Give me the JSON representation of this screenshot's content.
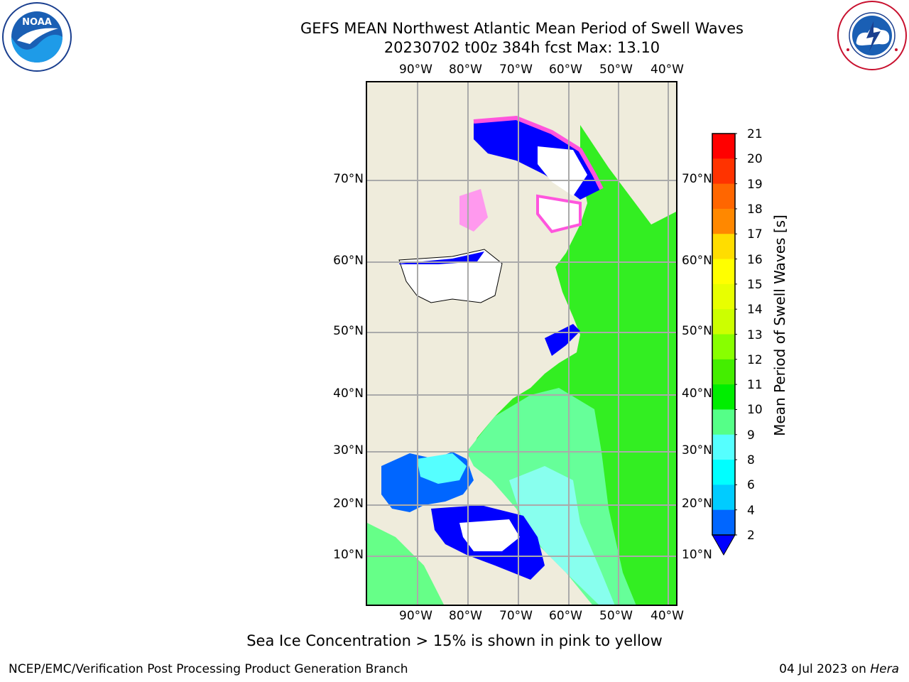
{
  "header": {
    "title_line1": "GEFS MEAN Northwest Atlantic Mean Period of Swell Waves",
    "title_line2": "20230702 t00z 384h fcst   Max: 13.10"
  },
  "logos": {
    "left": "NOAA",
    "left_ring_text": "NATIONAL OCEANIC AND ATMOSPHERIC ADMINISTRATION • U.S. DEPARTMENT OF COMMERCE",
    "right_ring_text": "NATIONAL WEATHER SERVICE"
  },
  "map": {
    "lon_labels": [
      "90°W",
      "80°W",
      "70°W",
      "60°W",
      "50°W",
      "40°W"
    ],
    "lat_labels": [
      "70°N",
      "60°N",
      "50°N",
      "40°N",
      "30°N",
      "20°N",
      "10°N"
    ],
    "colors": {
      "land": "#efecdc",
      "ice": "#ffffff",
      "ice_edge": "#ff55dd"
    }
  },
  "colorbar": {
    "title": "Mean Period of Swell Waves [s]",
    "ticks": [
      "21",
      "20",
      "19",
      "18",
      "17",
      "16",
      "15",
      "14",
      "13",
      "12",
      "11",
      "10",
      "9",
      "8",
      "6",
      "4",
      "2"
    ],
    "colors": [
      "#ff0000",
      "#ff3300",
      "#ff6600",
      "#ff8800",
      "#ffaa00",
      "#ffdd00",
      "#ffff00",
      "#e8ff00",
      "#ccff00",
      "#88ff00",
      "#44ee00",
      "#00ee00",
      "#55ff88",
      "#aaffff",
      "#55ffff",
      "#00ffff",
      "#00ccff",
      "#0066ff",
      "#0000ff"
    ]
  },
  "caption": "Sea Ice Concentration > 15% is shown in pink to yellow",
  "footer": {
    "left": "NCEP/EMC/Verification Post Processing Product Generation Branch",
    "right_date": "04 Jul 2023 on ",
    "right_host": "Hera"
  }
}
